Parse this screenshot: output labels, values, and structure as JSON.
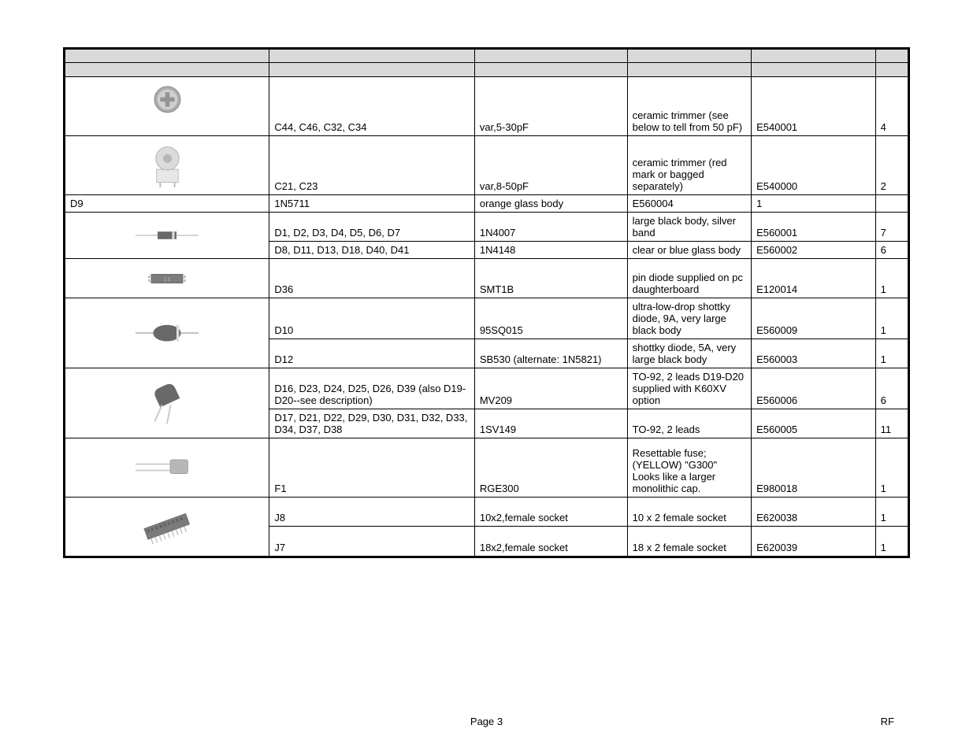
{
  "rows": [
    {
      "image": "trimmer1",
      "designator": "C44, C46, C32, C34",
      "part": "var,5-30pF",
      "description": "ceramic trimmer (see below to tell from 50 pF)",
      "code": "E540001",
      "qty": "4",
      "rowspan_img": 1,
      "img_height": "tall"
    },
    {
      "image": "trimmer2",
      "designator": "C21, C23",
      "part": "var,8-50pF",
      "description": "ceramic trimmer (red mark or bagged separately)",
      "code": "E540000",
      "qty": "2",
      "rowspan_img": 1,
      "img_height": "tall"
    },
    {
      "image": null,
      "designator": "D9",
      "part": "1N5711",
      "description": "orange glass body",
      "code": "E560004",
      "qty": "1",
      "rowspan_img": 0
    },
    {
      "image": "diode1",
      "designator": "D1, D2, D3, D4, D5, D6, D7",
      "part": "1N4007",
      "description": "large black body, silver band",
      "code": "E560001",
      "qty": "7",
      "rowspan_img": 2,
      "img_height": "normal"
    },
    {
      "image": null,
      "designator": "D8, D11, D13, D18, D40, D41",
      "part": "1N4148",
      "description": "clear or blue glass body",
      "code": "E560002",
      "qty": "6",
      "rowspan_img": 0
    },
    {
      "image": "smt",
      "designator": "D36",
      "part": "SMT1B",
      "description": "pin diode supplied on pc daughterboard",
      "code": "E120014",
      "qty": "1",
      "rowspan_img": 1,
      "img_height": "normal"
    },
    {
      "image": "large-diode",
      "designator": "D10",
      "part": "95SQ015",
      "description": "ultra-low-drop shottky diode, 9A, very large black body",
      "code": "E560009",
      "qty": "1",
      "rowspan_img": 2,
      "img_height": "tall"
    },
    {
      "image": null,
      "designator": "D12",
      "part": "SB530 (alternate: 1N5821)",
      "description": "shottky diode, 5A, very large black body",
      "code": "E560003",
      "qty": "1",
      "rowspan_img": 0
    },
    {
      "image": "to92",
      "designator": "D16, D23, D24, D25, D26, D39 (also D19-D20--see description)",
      "part": "MV209",
      "description": "TO-92, 2 leads D19-D20 supplied with K60XV option",
      "code": "E560006",
      "qty": "6",
      "rowspan_img": 2,
      "img_height": "tall"
    },
    {
      "image": null,
      "designator": "D17, D21, D22, D29, D30, D31, D32, D33, D34, D37, D38",
      "part": "1SV149",
      "description": "TO-92, 2 leads",
      "code": "E560005",
      "qty": "11",
      "rowspan_img": 0
    },
    {
      "image": "fuse",
      "designator": "F1",
      "part": "RGE300",
      "description": "Resettable fuse; (YELLOW) \"G300\" Looks like a larger monolithic cap.",
      "code": "E980018",
      "qty": "1",
      "rowspan_img": 1,
      "img_height": "tall"
    },
    {
      "image": "socket",
      "designator": "J8",
      "part": "10x2,female socket",
      "description": "10 x 2 female socket",
      "code": "E620038",
      "qty": "1",
      "rowspan_img": 2,
      "img_height": "tall"
    },
    {
      "image": null,
      "designator": "J7",
      "part": "18x2,female socket",
      "description": "18 x 2 female socket",
      "code": "E620039",
      "qty": "1",
      "rowspan_img": 0
    }
  ],
  "footer": {
    "page": "Page 3",
    "right": "RF"
  },
  "svg": {
    "trimmer_color": "#888",
    "diode_body": "#333",
    "lead_color": "#999",
    "socket_color": "#555"
  }
}
